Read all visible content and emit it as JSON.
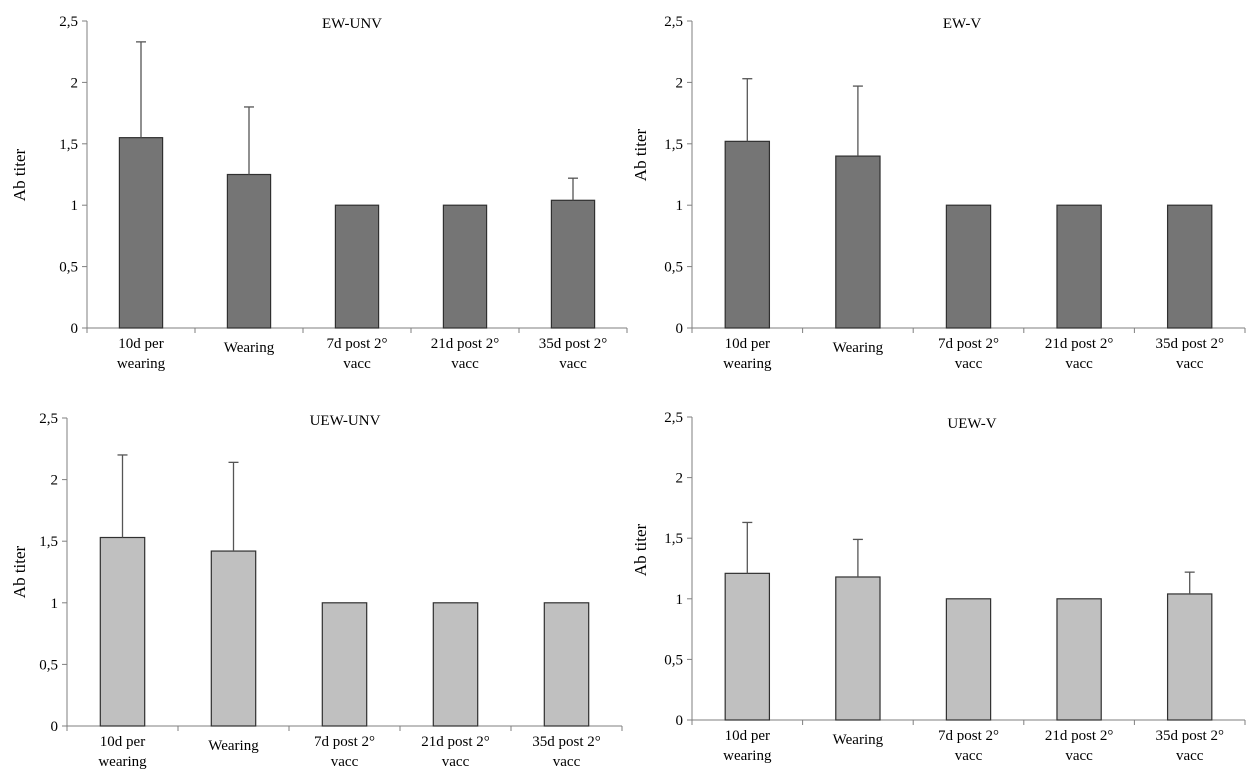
{
  "chart_data": [
    {
      "type": "bar",
      "title": "EW-UNV",
      "xlabel": "",
      "ylabel": "Ab titer",
      "ylim": [
        0,
        2.5
      ],
      "yticks": [
        "0",
        "0,5",
        "1",
        "1,5",
        "2",
        "2,5"
      ],
      "categories": [
        [
          "10d per",
          "wearing"
        ],
        [
          "Wearing"
        ],
        [
          "7d post 2°",
          "vacc"
        ],
        [
          "21d post 2°",
          "vacc"
        ],
        [
          "35d post 2°",
          "vacc"
        ]
      ],
      "values": [
        1.55,
        1.25,
        1.0,
        1.0,
        1.04
      ],
      "errors": [
        0.78,
        0.55,
        0,
        0,
        0.18
      ],
      "bar_color": "#757575",
      "grid": false
    },
    {
      "type": "bar",
      "title": "EW-V",
      "xlabel": "",
      "ylabel": "Ab titer",
      "ylim": [
        0,
        2.5
      ],
      "yticks": [
        "0",
        "0,5",
        "1",
        "1,5",
        "2",
        "2,5"
      ],
      "categories": [
        [
          "10d per",
          "wearing"
        ],
        [
          "Wearing"
        ],
        [
          "7d post 2°",
          "vacc"
        ],
        [
          "21d post 2°",
          "vacc"
        ],
        [
          "35d post 2°",
          "vacc"
        ]
      ],
      "values": [
        1.52,
        1.4,
        1.0,
        1.0,
        1.0
      ],
      "errors": [
        0.51,
        0.57,
        0,
        0,
        0
      ],
      "bar_color": "#757575",
      "grid": false
    },
    {
      "type": "bar",
      "title": "UEW-UNV",
      "xlabel": "",
      "ylabel": "Ab titer",
      "ylim": [
        0,
        2.5
      ],
      "yticks": [
        "0",
        "0,5",
        "1",
        "1,5",
        "2",
        "2,5"
      ],
      "categories": [
        [
          "10d per",
          "wearing"
        ],
        [
          "Wearing"
        ],
        [
          "7d post 2°",
          "vacc"
        ],
        [
          "21d post 2°",
          "vacc"
        ],
        [
          "35d post 2°",
          "vacc"
        ]
      ],
      "values": [
        1.53,
        1.42,
        1.0,
        1.0,
        1.0
      ],
      "errors": [
        0.67,
        0.72,
        0,
        0,
        0
      ],
      "bar_color": "#c0c0c0",
      "grid": false
    },
    {
      "type": "bar",
      "title": "UEW-V",
      "xlabel": "",
      "ylabel": "Ab titer",
      "ylim": [
        0,
        2.5
      ],
      "yticks": [
        "0",
        "0,5",
        "1",
        "1,5",
        "2",
        "2,5"
      ],
      "categories": [
        [
          "10d per",
          "wearing"
        ],
        [
          "Wearing"
        ],
        [
          "7d post 2°",
          "vacc"
        ],
        [
          "21d post 2°",
          "vacc"
        ],
        [
          "35d post 2°",
          "vacc"
        ]
      ],
      "values": [
        1.21,
        1.18,
        1.0,
        1.0,
        1.04
      ],
      "errors": [
        0.42,
        0.31,
        0,
        0,
        0.18
      ],
      "bar_color": "#c0c0c0",
      "grid": false
    }
  ]
}
